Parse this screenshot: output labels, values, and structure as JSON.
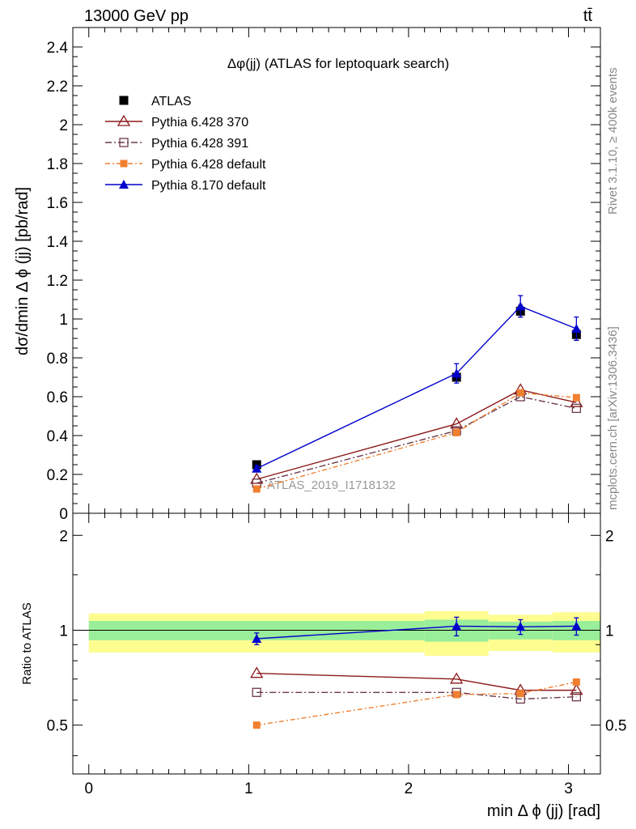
{
  "header": {
    "energy": "13000 GeV pp",
    "process": "tt̄"
  },
  "side_labels": {
    "rivet": "Rivet 3.1.10, ≥ 400k events",
    "mcplots": "mcplots.cern.ch [arXiv:1306.3436]"
  },
  "chart_data": [
    {
      "type": "line",
      "title": "Δφ(jj) (ATLAS for leptoquark search)",
      "watermark": "ATLAS_2019_I1718132",
      "ylabel": "dσ/dmin Δ ϕ (jj) [pb/rad]",
      "xlim": [
        -0.1,
        3.2
      ],
      "ylim": [
        0,
        2.5
      ],
      "yticks": [
        0,
        0.2,
        0.4,
        0.6,
        0.8,
        1,
        1.2,
        1.4,
        1.6,
        1.8,
        2,
        2.2,
        2.4
      ],
      "ytick_labels": [
        "0",
        "0.2",
        "0.4",
        "0.6",
        "0.8",
        "1",
        "1.2",
        "1.4",
        "1.6",
        "1.8",
        "2",
        "2.2",
        "2.4"
      ],
      "legend_position": "top-left",
      "series": [
        {
          "name": "ATLAS",
          "color": "#000000",
          "marker": "filled-square",
          "x": [
            1.05,
            2.3,
            2.7,
            3.05
          ],
          "values": [
            0.25,
            0.7,
            1.04,
            0.92
          ],
          "errors": [
            0.015,
            0.02,
            0.03,
            0.03
          ]
        },
        {
          "name": "Pythia 6.428 370",
          "color": "#8b1a1a",
          "marker": "open-triangle",
          "x": [
            1.05,
            2.3,
            2.7,
            3.05
          ],
          "values": [
            0.175,
            0.46,
            0.635,
            0.57
          ]
        },
        {
          "name": "Pythia 6.428 391",
          "color": "#6b3a4a",
          "marker": "open-square",
          "x": [
            1.05,
            2.3,
            2.7,
            3.05
          ],
          "values": [
            0.155,
            0.425,
            0.6,
            0.54
          ]
        },
        {
          "name": "Pythia 6.428 default",
          "color": "#f08030",
          "marker": "filled-square-small",
          "x": [
            1.05,
            2.3,
            2.7,
            3.05
          ],
          "values": [
            0.125,
            0.415,
            0.62,
            0.595
          ]
        },
        {
          "name": "Pythia 8.170 default",
          "color": "#0000cc",
          "marker": "filled-triangle",
          "x": [
            1.05,
            2.3,
            2.7,
            3.05
          ],
          "values": [
            0.23,
            0.72,
            1.065,
            0.95
          ],
          "errors": [
            0.015,
            0.05,
            0.055,
            0.06
          ]
        }
      ]
    },
    {
      "type": "line",
      "ylabel": "Ratio to ATLAS",
      "xlabel": "min Δ ϕ (jj) [rad]",
      "xlim": [
        -0.1,
        3.2
      ],
      "ylim": [
        0.35,
        2.35
      ],
      "xticks": [
        0,
        1,
        2,
        3
      ],
      "xtick_labels": [
        "0",
        "1",
        "2",
        "3"
      ],
      "yticks": [
        0.5,
        1,
        2
      ],
      "ytick_labels": [
        "0.5",
        "1",
        "2"
      ],
      "bands": [
        {
          "x": [
            0,
            2.1
          ],
          "inner": [
            0.93,
            1.07
          ],
          "outer": [
            0.85,
            1.13
          ]
        },
        {
          "x": [
            2.1,
            2.5
          ],
          "inner": [
            0.92,
            1.08
          ],
          "outer": [
            0.83,
            1.15
          ]
        },
        {
          "x": [
            2.5,
            2.9
          ],
          "inner": [
            0.935,
            1.065
          ],
          "outer": [
            0.86,
            1.12
          ]
        },
        {
          "x": [
            2.9,
            3.2
          ],
          "inner": [
            0.93,
            1.07
          ],
          "outer": [
            0.85,
            1.14
          ]
        }
      ],
      "band_colors": {
        "inner": "#99ee99",
        "outer": "#fdfd90"
      },
      "series": [
        {
          "name": "Pythia 6.428 370",
          "color": "#8b1a1a",
          "marker": "open-triangle",
          "x": [
            1.05,
            2.3,
            2.7,
            3.05
          ],
          "values": [
            0.73,
            0.7,
            0.645,
            0.645
          ]
        },
        {
          "name": "Pythia 6.428 391",
          "color": "#6b3a4a",
          "marker": "open-square",
          "x": [
            1.05,
            2.3,
            2.7,
            3.05
          ],
          "values": [
            0.635,
            0.635,
            0.605,
            0.615
          ]
        },
        {
          "name": "Pythia 6.428 default",
          "color": "#f08030",
          "marker": "filled-square-small",
          "x": [
            1.05,
            2.3,
            2.7,
            3.05
          ],
          "values": [
            0.5,
            0.625,
            0.63,
            0.685
          ]
        },
        {
          "name": "Pythia 8.170 default",
          "color": "#0000cc",
          "marker": "filled-triangle",
          "x": [
            1.05,
            2.3,
            2.7,
            3.05
          ],
          "values": [
            0.94,
            1.03,
            1.025,
            1.03
          ],
          "errors": [
            0.04,
            0.07,
            0.055,
            0.065
          ]
        }
      ]
    }
  ]
}
